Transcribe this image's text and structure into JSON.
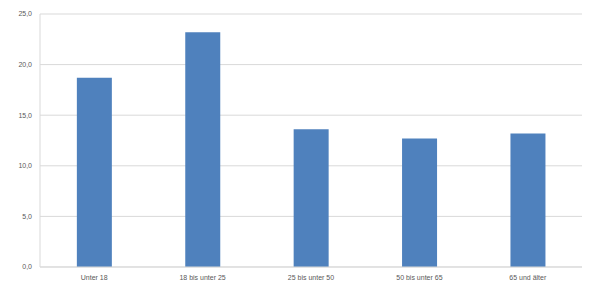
{
  "chart_data": {
    "type": "bar",
    "categories": [
      "Unter 18",
      "18 bis unter 25",
      "25 bis unter 50",
      "50 bis unter 65",
      "65 und älter"
    ],
    "values": [
      18.7,
      23.2,
      13.6,
      12.7,
      13.2
    ],
    "color": "#4f81bd",
    "ylim": [
      0,
      25
    ],
    "yticks": [
      {
        "value": 0,
        "label": "0,0"
      },
      {
        "value": 5,
        "label": "5,0"
      },
      {
        "value": 10,
        "label": "10,0"
      },
      {
        "value": 15,
        "label": "15,0"
      },
      {
        "value": 20,
        "label": "20,0"
      },
      {
        "value": 25,
        "label": "25,0"
      }
    ],
    "grid": true
  }
}
